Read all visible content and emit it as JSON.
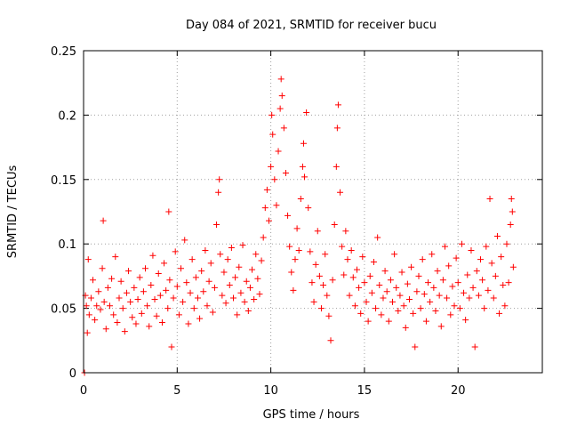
{
  "chart_data": {
    "type": "scatter",
    "title": "Day 084 of 2021, SRMTID for receiver bucu",
    "xlabel": "GPS time / hours",
    "ylabel": "SRMTID / TECUs",
    "xlim": [
      0,
      24.5
    ],
    "ylim": [
      0,
      0.25
    ],
    "xticks": [
      0,
      5,
      10,
      15,
      20
    ],
    "xtick_labels": [
      "0",
      "5",
      "10",
      "15",
      "20"
    ],
    "yticks": [
      0,
      0.05,
      0.1,
      0.15,
      0.2,
      0.25
    ],
    "ytick_labels": [
      "0",
      "0.05",
      "0.1",
      "0.15",
      "0.2",
      "0.25"
    ],
    "grid": true,
    "marker": "+",
    "color": "#ff0000",
    "series": [
      {
        "name": "SRMTID",
        "points": [
          [
            0.05,
            0.0
          ],
          [
            0.1,
            0.06
          ],
          [
            0.15,
            0.052
          ],
          [
            0.2,
            0.031
          ],
          [
            0.25,
            0.088
          ],
          [
            0.3,
            0.045
          ],
          [
            0.4,
            0.058
          ],
          [
            0.5,
            0.072
          ],
          [
            0.6,
            0.041
          ],
          [
            0.7,
            0.052
          ],
          [
            0.8,
            0.063
          ],
          [
            0.9,
            0.049
          ],
          [
            1.0,
            0.081
          ],
          [
            1.05,
            0.118
          ],
          [
            1.1,
            0.055
          ],
          [
            1.2,
            0.034
          ],
          [
            1.3,
            0.066
          ],
          [
            1.4,
            0.052
          ],
          [
            1.5,
            0.073
          ],
          [
            1.6,
            0.045
          ],
          [
            1.7,
            0.09
          ],
          [
            1.8,
            0.039
          ],
          [
            1.9,
            0.058
          ],
          [
            2.0,
            0.071
          ],
          [
            2.1,
            0.05
          ],
          [
            2.2,
            0.032
          ],
          [
            2.3,
            0.062
          ],
          [
            2.4,
            0.079
          ],
          [
            2.5,
            0.055
          ],
          [
            2.6,
            0.043
          ],
          [
            2.7,
            0.066
          ],
          [
            2.8,
            0.038
          ],
          [
            2.9,
            0.057
          ],
          [
            3.0,
            0.074
          ],
          [
            3.1,
            0.046
          ],
          [
            3.2,
            0.063
          ],
          [
            3.3,
            0.081
          ],
          [
            3.4,
            0.052
          ],
          [
            3.5,
            0.036
          ],
          [
            3.6,
            0.068
          ],
          [
            3.7,
            0.091
          ],
          [
            3.8,
            0.057
          ],
          [
            3.9,
            0.044
          ],
          [
            4.0,
            0.077
          ],
          [
            4.1,
            0.06
          ],
          [
            4.2,
            0.039
          ],
          [
            4.3,
            0.085
          ],
          [
            4.4,
            0.064
          ],
          [
            4.5,
            0.05
          ],
          [
            4.55,
            0.125
          ],
          [
            4.6,
            0.072
          ],
          [
            4.7,
            0.02
          ],
          [
            4.8,
            0.058
          ],
          [
            4.9,
            0.094
          ],
          [
            5.0,
            0.067
          ],
          [
            5.1,
            0.045
          ],
          [
            5.2,
            0.081
          ],
          [
            5.3,
            0.055
          ],
          [
            5.4,
            0.103
          ],
          [
            5.5,
            0.07
          ],
          [
            5.6,
            0.038
          ],
          [
            5.7,
            0.062
          ],
          [
            5.8,
            0.088
          ],
          [
            5.9,
            0.05
          ],
          [
            6.0,
            0.074
          ],
          [
            6.1,
            0.058
          ],
          [
            6.2,
            0.042
          ],
          [
            6.3,
            0.079
          ],
          [
            6.4,
            0.063
          ],
          [
            6.5,
            0.095
          ],
          [
            6.6,
            0.052
          ],
          [
            6.7,
            0.071
          ],
          [
            6.8,
            0.085
          ],
          [
            6.9,
            0.047
          ],
          [
            7.0,
            0.066
          ],
          [
            7.1,
            0.115
          ],
          [
            7.2,
            0.14
          ],
          [
            7.25,
            0.15
          ],
          [
            7.3,
            0.092
          ],
          [
            7.4,
            0.06
          ],
          [
            7.5,
            0.078
          ],
          [
            7.6,
            0.054
          ],
          [
            7.7,
            0.088
          ],
          [
            7.8,
            0.068
          ],
          [
            7.9,
            0.097
          ],
          [
            8.0,
            0.058
          ],
          [
            8.1,
            0.074
          ],
          [
            8.2,
            0.045
          ],
          [
            8.3,
            0.082
          ],
          [
            8.4,
            0.062
          ],
          [
            8.5,
            0.099
          ],
          [
            8.6,
            0.055
          ],
          [
            8.7,
            0.071
          ],
          [
            8.8,
            0.048
          ],
          [
            8.9,
            0.066
          ],
          [
            9.0,
            0.08
          ],
          [
            9.1,
            0.057
          ],
          [
            9.2,
            0.092
          ],
          [
            9.3,
            0.073
          ],
          [
            9.4,
            0.061
          ],
          [
            9.5,
            0.087
          ],
          [
            9.6,
            0.105
          ],
          [
            9.7,
            0.128
          ],
          [
            9.8,
            0.142
          ],
          [
            9.9,
            0.118
          ],
          [
            10.0,
            0.16
          ],
          [
            10.05,
            0.2
          ],
          [
            10.1,
            0.185
          ],
          [
            10.2,
            0.15
          ],
          [
            10.3,
            0.13
          ],
          [
            10.4,
            0.172
          ],
          [
            10.5,
            0.205
          ],
          [
            10.55,
            0.228
          ],
          [
            10.6,
            0.215
          ],
          [
            10.7,
            0.19
          ],
          [
            10.8,
            0.155
          ],
          [
            10.9,
            0.122
          ],
          [
            11.0,
            0.098
          ],
          [
            11.1,
            0.078
          ],
          [
            11.2,
            0.064
          ],
          [
            11.3,
            0.088
          ],
          [
            11.4,
            0.112
          ],
          [
            11.5,
            0.095
          ],
          [
            11.6,
            0.135
          ],
          [
            11.7,
            0.16
          ],
          [
            11.75,
            0.178
          ],
          [
            11.8,
            0.152
          ],
          [
            11.9,
            0.202
          ],
          [
            12.0,
            0.128
          ],
          [
            12.1,
            0.094
          ],
          [
            12.2,
            0.07
          ],
          [
            12.3,
            0.055
          ],
          [
            12.4,
            0.084
          ],
          [
            12.5,
            0.11
          ],
          [
            12.6,
            0.075
          ],
          [
            12.7,
            0.05
          ],
          [
            12.8,
            0.068
          ],
          [
            12.9,
            0.092
          ],
          [
            13.0,
            0.06
          ],
          [
            13.1,
            0.044
          ],
          [
            13.2,
            0.025
          ],
          [
            13.3,
            0.072
          ],
          [
            13.4,
            0.115
          ],
          [
            13.5,
            0.16
          ],
          [
            13.55,
            0.19
          ],
          [
            13.6,
            0.208
          ],
          [
            13.7,
            0.14
          ],
          [
            13.8,
            0.098
          ],
          [
            13.9,
            0.076
          ],
          [
            14.0,
            0.11
          ],
          [
            14.1,
            0.088
          ],
          [
            14.2,
            0.06
          ],
          [
            14.3,
            0.095
          ],
          [
            14.4,
            0.074
          ],
          [
            14.5,
            0.052
          ],
          [
            14.6,
            0.08
          ],
          [
            14.7,
            0.066
          ],
          [
            14.8,
            0.046
          ],
          [
            14.9,
            0.09
          ],
          [
            15.0,
            0.07
          ],
          [
            15.1,
            0.055
          ],
          [
            15.2,
            0.04
          ],
          [
            15.3,
            0.075
          ],
          [
            15.4,
            0.062
          ],
          [
            15.5,
            0.086
          ],
          [
            15.6,
            0.05
          ],
          [
            15.7,
            0.105
          ],
          [
            15.8,
            0.068
          ],
          [
            15.9,
            0.045
          ],
          [
            16.0,
            0.058
          ],
          [
            16.1,
            0.079
          ],
          [
            16.2,
            0.063
          ],
          [
            16.3,
            0.04
          ],
          [
            16.4,
            0.072
          ],
          [
            16.5,
            0.055
          ],
          [
            16.6,
            0.092
          ],
          [
            16.7,
            0.066
          ],
          [
            16.8,
            0.048
          ],
          [
            16.9,
            0.06
          ],
          [
            17.0,
            0.078
          ],
          [
            17.1,
            0.052
          ],
          [
            17.2,
            0.035
          ],
          [
            17.3,
            0.069
          ],
          [
            17.4,
            0.057
          ],
          [
            17.5,
            0.082
          ],
          [
            17.6,
            0.046
          ],
          [
            17.7,
            0.02
          ],
          [
            17.8,
            0.063
          ],
          [
            17.9,
            0.075
          ],
          [
            18.0,
            0.05
          ],
          [
            18.1,
            0.088
          ],
          [
            18.2,
            0.061
          ],
          [
            18.3,
            0.04
          ],
          [
            18.4,
            0.07
          ],
          [
            18.5,
            0.055
          ],
          [
            18.6,
            0.092
          ],
          [
            18.7,
            0.066
          ],
          [
            18.8,
            0.048
          ],
          [
            18.9,
            0.079
          ],
          [
            19.0,
            0.06
          ],
          [
            19.1,
            0.036
          ],
          [
            19.2,
            0.072
          ],
          [
            19.3,
            0.098
          ],
          [
            19.4,
            0.058
          ],
          [
            19.5,
            0.083
          ],
          [
            19.6,
            0.045
          ],
          [
            19.7,
            0.067
          ],
          [
            19.8,
            0.052
          ],
          [
            19.9,
            0.089
          ],
          [
            20.0,
            0.07
          ],
          [
            20.1,
            0.05
          ],
          [
            20.2,
            0.1
          ],
          [
            20.3,
            0.062
          ],
          [
            20.4,
            0.041
          ],
          [
            20.5,
            0.076
          ],
          [
            20.6,
            0.058
          ],
          [
            20.7,
            0.095
          ],
          [
            20.8,
            0.066
          ],
          [
            20.9,
            0.02
          ],
          [
            21.0,
            0.079
          ],
          [
            21.1,
            0.06
          ],
          [
            21.2,
            0.088
          ],
          [
            21.3,
            0.072
          ],
          [
            21.4,
            0.05
          ],
          [
            21.5,
            0.098
          ],
          [
            21.6,
            0.064
          ],
          [
            21.7,
            0.135
          ],
          [
            21.8,
            0.085
          ],
          [
            21.9,
            0.058
          ],
          [
            22.0,
            0.075
          ],
          [
            22.1,
            0.106
          ],
          [
            22.2,
            0.046
          ],
          [
            22.3,
            0.09
          ],
          [
            22.4,
            0.068
          ],
          [
            22.5,
            0.052
          ],
          [
            22.6,
            0.1
          ],
          [
            22.7,
            0.07
          ],
          [
            22.8,
            0.115
          ],
          [
            22.85,
            0.135
          ],
          [
            22.9,
            0.125
          ],
          [
            22.95,
            0.082
          ]
        ]
      }
    ]
  }
}
